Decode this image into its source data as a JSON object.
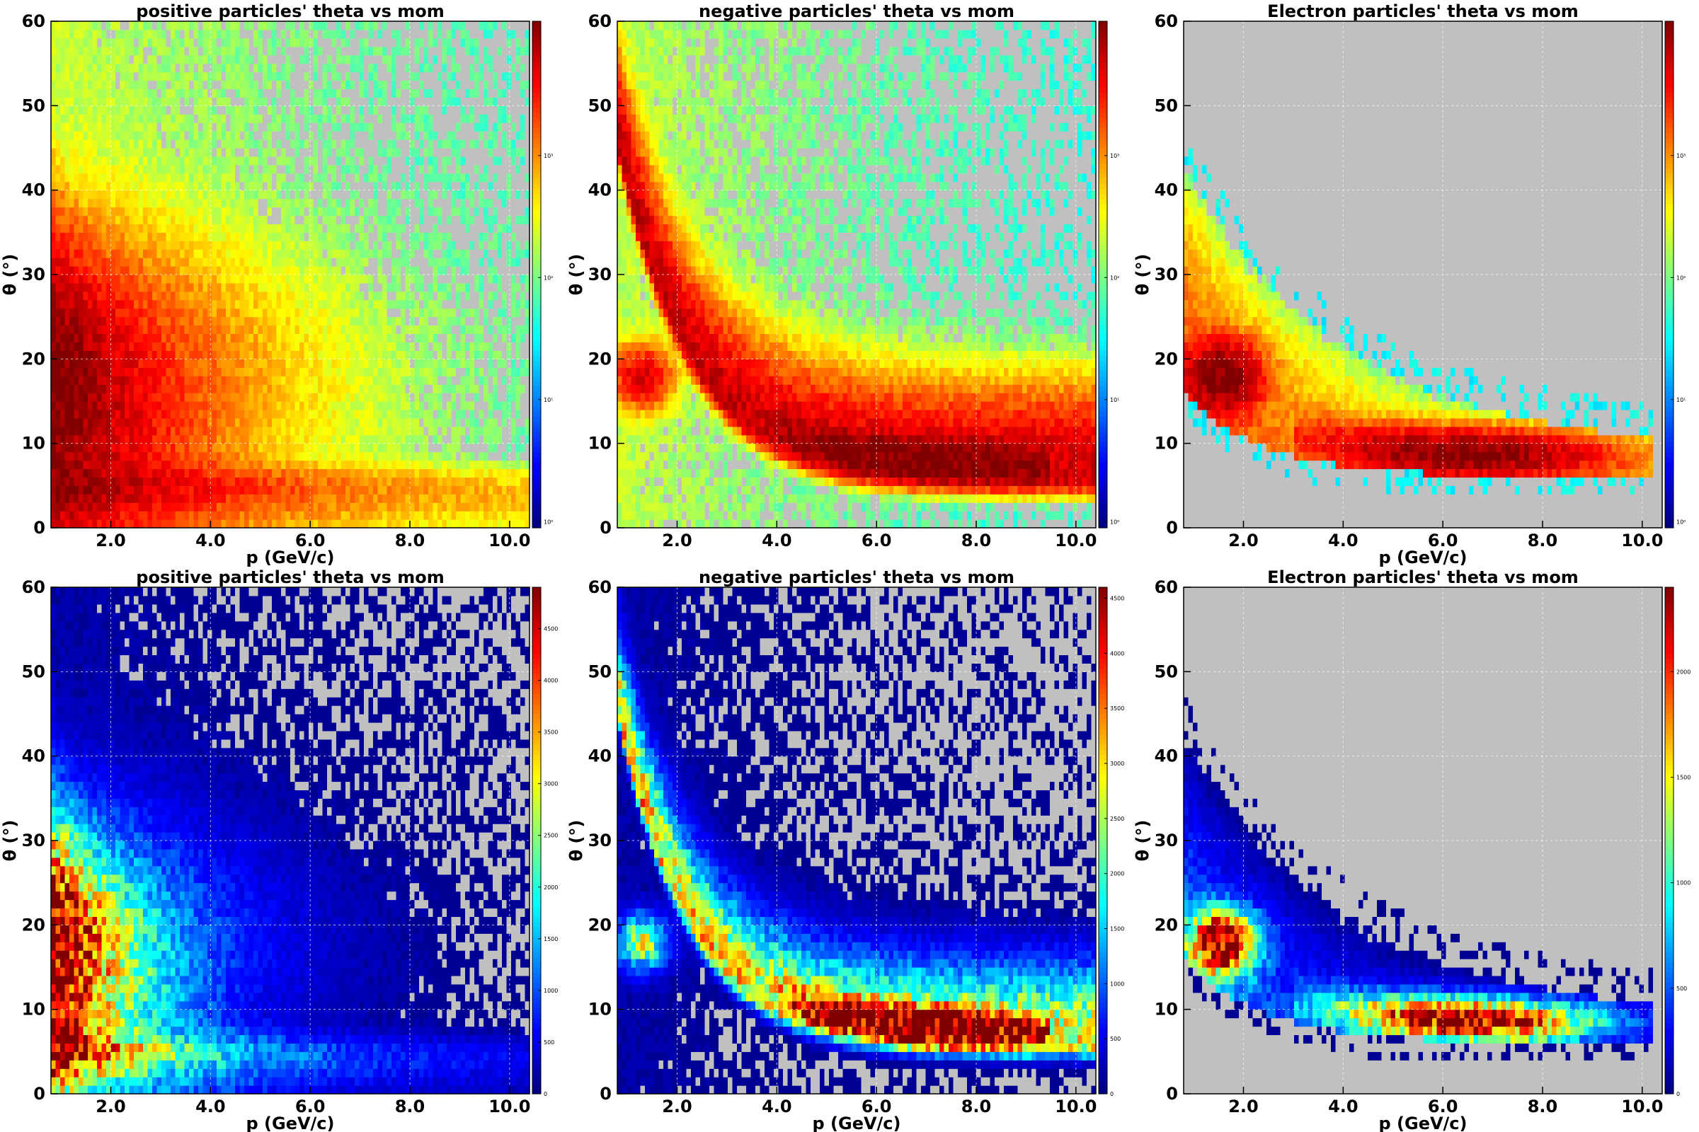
{
  "colors": {
    "empty_bin": "#c0c0c0",
    "colormap": "jet",
    "grid": "#ffffff"
  },
  "chart_data": [
    {
      "type": "heatmap",
      "title": "positive particles' theta vs mom",
      "xlabel": "p (GeV/c)",
      "ylabel": "θ (°)",
      "xlim": [
        0.8,
        10.4
      ],
      "ylim": [
        0,
        60
      ],
      "x_ticks": [
        "2.0",
        "4.0",
        "6.0",
        "8.0",
        "10.0"
      ],
      "y_ticks": [
        "0",
        "10",
        "20",
        "30",
        "40",
        "50",
        "60"
      ],
      "colorbar": {
        "scale": "log",
        "ticks": [
          "10⁰",
          "10¹",
          "10²",
          "10³"
        ]
      },
      "grid": true,
      "dist": "pos"
    },
    {
      "type": "heatmap",
      "title": "negative particles' theta vs mom",
      "xlabel": "",
      "ylabel": "θ (°)",
      "xlim": [
        0.8,
        10.4
      ],
      "ylim": [
        0,
        60
      ],
      "x_ticks": [
        "2.0",
        "4.0",
        "6.0",
        "8.0",
        "10.0"
      ],
      "y_ticks": [
        "0",
        "10",
        "20",
        "30",
        "40",
        "50",
        "60"
      ],
      "colorbar": {
        "scale": "log",
        "ticks": [
          "10⁰",
          "10¹",
          "10²",
          "10³"
        ]
      },
      "grid": true,
      "dist": "neg"
    },
    {
      "type": "heatmap",
      "title": "Electron particles' theta vs mom",
      "xlabel": "p (GeV/c)",
      "ylabel": "θ (°)",
      "xlim": [
        0.8,
        10.4
      ],
      "ylim": [
        0,
        60
      ],
      "x_ticks": [
        "2.0",
        "4.0",
        "6.0",
        "8.0",
        "10.0"
      ],
      "y_ticks": [
        "0",
        "10",
        "20",
        "30",
        "40",
        "50",
        "60"
      ],
      "colorbar": {
        "scale": "log",
        "ticks": [
          "10⁰",
          "10¹",
          "10²",
          "10³"
        ]
      },
      "grid": true,
      "dist": "ele"
    },
    {
      "type": "heatmap",
      "title": "positive particles' theta vs mom",
      "xlabel": "p (GeV/c)",
      "ylabel": "θ (°)",
      "xlim": [
        0.8,
        10.4
      ],
      "ylim": [
        0,
        60
      ],
      "x_ticks": [
        "2.0",
        "4.0",
        "6.0",
        "8.0",
        "10.0"
      ],
      "y_ticks": [
        "0",
        "10",
        "20",
        "30",
        "40",
        "50",
        "60"
      ],
      "colorbar": {
        "scale": "linear",
        "ticks": [
          "0",
          "500",
          "1000",
          "1500",
          "2000",
          "2500",
          "3000",
          "3500",
          "4000",
          "4500"
        ],
        "max": 4900
      },
      "grid": true,
      "dist": "pos"
    },
    {
      "type": "heatmap",
      "title": "negative particles' theta vs mom",
      "xlabel": "p (GeV/c)",
      "ylabel": "θ (°)",
      "xlim": [
        0.8,
        10.4
      ],
      "ylim": [
        0,
        60
      ],
      "x_ticks": [
        "2.0",
        "4.0",
        "6.0",
        "8.0",
        "10.0"
      ],
      "y_ticks": [
        "0",
        "10",
        "20",
        "30",
        "40",
        "50",
        "60"
      ],
      "colorbar": {
        "scale": "linear",
        "ticks": [
          "0",
          "500",
          "1000",
          "1500",
          "2000",
          "2500",
          "3000",
          "3500",
          "4000",
          "4500"
        ],
        "max": 4600
      },
      "grid": true,
      "dist": "neg"
    },
    {
      "type": "heatmap",
      "title": "Electron particles' theta vs mom",
      "xlabel": "p (GeV/c)",
      "ylabel": "θ (°)",
      "xlim": [
        0.8,
        10.4
      ],
      "ylim": [
        0,
        60
      ],
      "x_ticks": [
        "2.0",
        "4.0",
        "6.0",
        "8.0",
        "10.0"
      ],
      "y_ticks": [
        "0",
        "10",
        "20",
        "30",
        "40",
        "50",
        "60"
      ],
      "colorbar": {
        "scale": "linear",
        "ticks": [
          "0",
          "500",
          "1000",
          "1500",
          "2000"
        ],
        "max": 2400
      },
      "grid": true,
      "dist": "ele"
    }
  ]
}
